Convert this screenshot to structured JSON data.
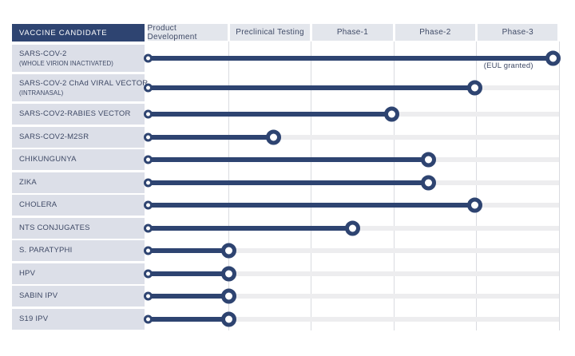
{
  "chart_data": {
    "type": "gantt",
    "corner_header": "VACCINE CANDIDATE",
    "columns": [
      "Product Development",
      "Preclinical Testing",
      "Phase-1",
      "Phase-2",
      "Phase-3"
    ],
    "x_axis_units": "phase columns (0 = start of Product Development, 1 column = 1 phase)",
    "rows": [
      {
        "label": "SARS-COV-2",
        "sublabel": "(WHOLE VIRION INACTIVATED)",
        "end": 4.93,
        "annotation": "(EUL granted)"
      },
      {
        "label": "SARS-COV-2 ChAd VIRAL VECTOR",
        "sublabel": "(INTRANASAL)",
        "end": 3.98
      },
      {
        "label": "SARS-COV2-RABIES VECTOR",
        "end": 2.97
      },
      {
        "label": "SARS-COV2-M2SR",
        "end": 1.54
      },
      {
        "label": "CHIKUNGUNYA",
        "end": 3.42
      },
      {
        "label": "ZIKA",
        "end": 3.42
      },
      {
        "label": "CHOLERA",
        "end": 3.98
      },
      {
        "label": "NTS CONJUGATES",
        "end": 2.5
      },
      {
        "label": "S. PARATYPHI",
        "end": 1.0
      },
      {
        "label": "HPV",
        "end": 1.0
      },
      {
        "label": "SABIN IPV",
        "end": 1.0
      },
      {
        "label": "S19 IPV",
        "end": 1.0
      }
    ],
    "legend_position": "none",
    "grid": true
  },
  "colors": {
    "navy": "#2e4471",
    "label_bg": "#dcdfe8",
    "header_bg": "#e3e6ec",
    "track": "#ededef",
    "gridline": "#d9dbe0",
    "text": "#3f4a66"
  }
}
